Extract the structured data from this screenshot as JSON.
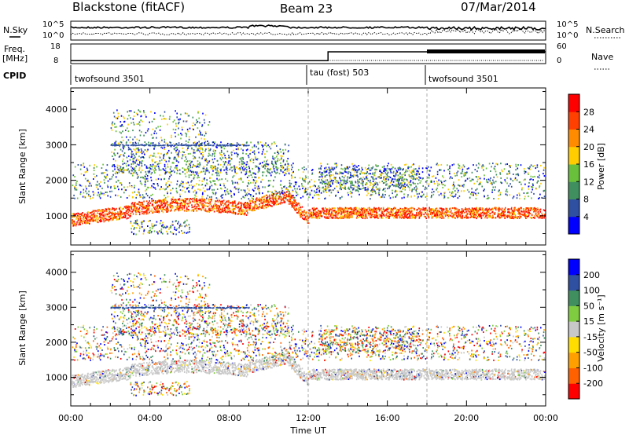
{
  "header": {
    "title": "Blackstone (fitACF)",
    "beam": "Beam 23",
    "date": "07/Mar/2014"
  },
  "colors": {
    "power_scale": [
      "#0000ff",
      "#2f4fa0",
      "#3f8f5f",
      "#69c03a",
      "#ffcc00",
      "#ff8c00",
      "#ff4000",
      "#ff0000"
    ],
    "velocity_scale": [
      "#ff0000",
      "#ff6000",
      "#ffa000",
      "#ffdd00",
      "#c8c8c8",
      "#80cc40",
      "#3f8f5f",
      "#2f4fa0",
      "#0000ff"
    ]
  },
  "chart_data": [
    {
      "type": "line",
      "panel": "noise",
      "left_label": "N.Sky",
      "right_label": "N.Search",
      "yticks": [
        "10^5",
        "10^0"
      ],
      "right_yticks": [
        "10^5",
        "10^0"
      ],
      "log_scale": true
    },
    {
      "type": "line",
      "panel": "frequency-nave",
      "left_label": "Freq.",
      "left_unit": "[MHz]",
      "right_label": "Nave",
      "yticks": [
        18,
        8
      ],
      "right_yticks": [
        60,
        0
      ],
      "series": [
        {
          "x": [
            0,
            12,
            13,
            18,
            24
          ],
          "values": [
            9.5,
            9.5,
            14,
            14,
            14
          ]
        }
      ]
    },
    {
      "type": "table",
      "panel": "cpid",
      "label": "CPID",
      "segments": [
        {
          "start": 0,
          "end": 12,
          "label": "twofsound 3501"
        },
        {
          "start": 12,
          "end": 18,
          "label": "tau (fost) 503"
        },
        {
          "start": 18,
          "end": 24,
          "label": "twofsound 3501"
        }
      ]
    },
    {
      "type": "heatmap",
      "panel": "power",
      "ylabel": "Slant Range [km]",
      "ylim": [
        180,
        4600
      ],
      "yticks": [
        1000,
        2000,
        3000,
        4000
      ],
      "xlim": [
        0,
        24
      ],
      "colorbar_label": "Power [dB]",
      "colorbar_ticks": [
        4,
        8,
        12,
        16,
        20,
        24,
        28
      ],
      "crange": [
        0,
        32
      ]
    },
    {
      "type": "heatmap",
      "panel": "velocity",
      "ylabel": "Slant Range [km]",
      "xlabel": "Time UT",
      "ylim": [
        180,
        4600
      ],
      "yticks": [
        1000,
        2000,
        3000,
        4000
      ],
      "xlim": [
        0,
        24
      ],
      "xticks": [
        "00:00",
        "04:00",
        "08:00",
        "12:00",
        "16:00",
        "20:00",
        "00:00"
      ],
      "colorbar_label": "Velocity [m s⁻¹]",
      "colorbar_ticks": [
        200,
        100,
        50,
        15,
        -15,
        -50,
        -100,
        -200
      ]
    }
  ]
}
